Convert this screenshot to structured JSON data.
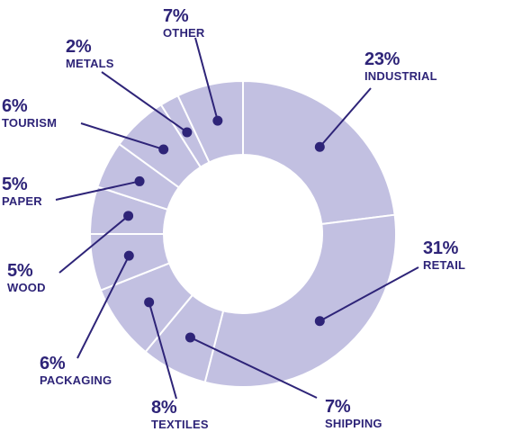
{
  "chart_data": {
    "type": "pie",
    "variant": "donut",
    "title": "",
    "slices": [
      {
        "label": "INDUSTRIAL",
        "value": 23,
        "display": "23%"
      },
      {
        "label": "RETAIL",
        "value": 31,
        "display": "31%"
      },
      {
        "label": "SHIPPING",
        "value": 7,
        "display": "7%"
      },
      {
        "label": "TEXTILES",
        "value": 8,
        "display": "8%"
      },
      {
        "label": "PACKAGING",
        "value": 6,
        "display": "6%"
      },
      {
        "label": "WOOD",
        "value": 5,
        "display": "5%"
      },
      {
        "label": "PAPER",
        "value": 5,
        "display": "5%"
      },
      {
        "label": "TOURISM",
        "value": 6,
        "display": "6%"
      },
      {
        "label": "METALS",
        "value": 2,
        "display": "2%"
      },
      {
        "label": "OTHER",
        "value": 7,
        "display": "7%"
      }
    ],
    "colors": {
      "slice_fill": "#c2c0e1",
      "slice_border": "#ffffff",
      "leader": "#2e2478",
      "text": "#2e2478"
    }
  }
}
